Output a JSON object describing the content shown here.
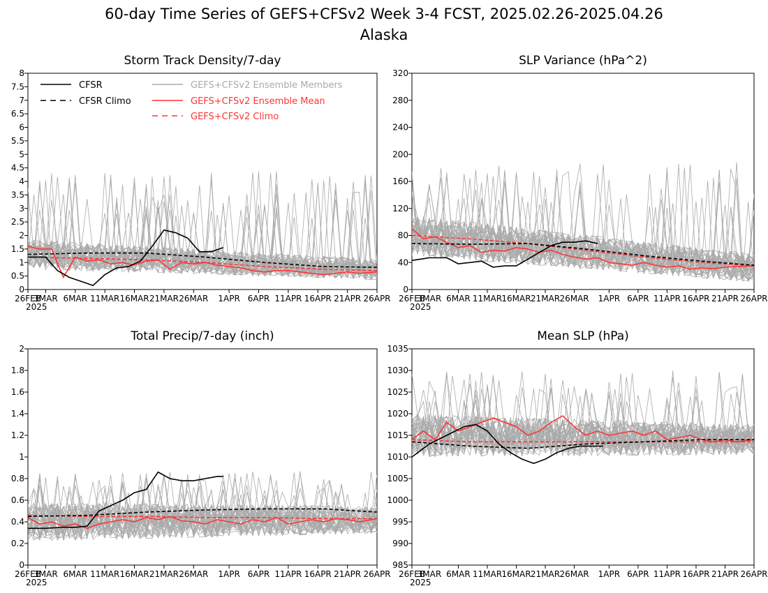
{
  "title": "60-day Time Series of GEFS+CFSv2 Week 3-4 FCST, 2025.02.26-2025.04.26",
  "subtitle": "Alaska",
  "colors": {
    "obs": "#000000",
    "members": "#aaaaaa",
    "ens_mean": "#ff3333",
    "ens_climo": "#ff3333"
  },
  "legend": [
    {
      "label": "CFSR",
      "style": "solid",
      "color": "#000000"
    },
    {
      "label": "CFSR Climo",
      "style": "dashed",
      "color": "#000000"
    },
    {
      "label": "GEFS+CFSv2 Ensemble Members",
      "style": "solid",
      "color": "#aaaaaa"
    },
    {
      "label": "GEFS+CFSv2 Ensemble Mean",
      "style": "solid",
      "color": "#ff3333"
    },
    {
      "label": "GEFS+CFSv2 Climo",
      "style": "dashed",
      "color": "#ff3333"
    }
  ],
  "chart_data": [
    {
      "type": "line",
      "title": "Storm Track Density/7-day",
      "x_ticks": [
        "26FEB",
        "3MAR",
        "6MAR",
        "11MAR",
        "16MAR",
        "21MAR",
        "26MAR",
        "1APR",
        "6APR",
        "11APR",
        "16APR",
        "21APR",
        "26APR"
      ],
      "x_year": "2025",
      "xlim": [
        0,
        59
      ],
      "ylim": [
        0,
        8
      ],
      "y_ticks": [
        "0",
        "0.5",
        "1",
        "1.5",
        "2",
        "2.5",
        "3",
        "3.5",
        "4",
        "4.5",
        "5",
        "5.5",
        "6",
        "6.5",
        "7",
        "7.5",
        "8"
      ],
      "members": {
        "count": 40,
        "center_start": 1.3,
        "center_end": 0.75,
        "spread": 0.55,
        "max_spike": 4.4
      },
      "series": [
        {
          "name": "CFSR",
          "role": "obs",
          "x": [
            0,
            3,
            5,
            7,
            9,
            11,
            13,
            15,
            17,
            19,
            21,
            23,
            25,
            27,
            29,
            31,
            33
          ],
          "values": [
            1.2,
            1.2,
            0.7,
            0.45,
            0.3,
            0.15,
            0.55,
            0.8,
            0.85,
            1.05,
            1.6,
            2.2,
            2.1,
            1.9,
            1.4,
            1.4,
            1.55
          ]
        },
        {
          "name": "CFSR Climo",
          "role": "obs_climo",
          "x": [
            0,
            10,
            20,
            30,
            40,
            50,
            59
          ],
          "values": [
            1.3,
            1.35,
            1.35,
            1.2,
            1.0,
            0.85,
            0.82
          ]
        },
        {
          "name": "GEFS+CFSv2 Ensemble Mean",
          "role": "ens_mean",
          "x": [
            0,
            2,
            4,
            6,
            8,
            10,
            12,
            14,
            16,
            18,
            20,
            22,
            24,
            26,
            28,
            30,
            32,
            34,
            36,
            38,
            40,
            42,
            44,
            46,
            48,
            50,
            52,
            54,
            56,
            59
          ],
          "values": [
            1.6,
            1.5,
            1.5,
            0.45,
            1.2,
            1.05,
            1.1,
            0.95,
            1.0,
            0.9,
            1.05,
            1.1,
            0.75,
            1.0,
            0.95,
            1.0,
            0.9,
            0.85,
            0.8,
            0.7,
            0.65,
            0.7,
            0.7,
            0.65,
            0.6,
            0.55,
            0.6,
            0.65,
            0.6,
            0.65
          ]
        },
        {
          "name": "GEFS+CFSv2 Climo",
          "role": "ens_climo",
          "x": [
            0,
            10,
            20,
            30,
            40,
            50,
            59
          ],
          "values": [
            1.2,
            1.15,
            1.1,
            1.0,
            0.85,
            0.75,
            0.7
          ]
        }
      ]
    },
    {
      "type": "line",
      "title": "SLP Variance (hPa^2)",
      "x_ticks": [
        "26FEB",
        "3MAR",
        "6MAR",
        "11MAR",
        "16MAR",
        "21MAR",
        "26MAR",
        "1APR",
        "6APR",
        "11APR",
        "16APR",
        "21APR",
        "26APR"
      ],
      "x_year": "2025",
      "xlim": [
        0,
        59
      ],
      "ylim": [
        0,
        320
      ],
      "y_ticks": [
        "0",
        "40",
        "80",
        "120",
        "160",
        "200",
        "240",
        "280",
        "320"
      ],
      "members": {
        "count": 40,
        "center_start": 80,
        "center_end": 32,
        "spread": 30,
        "max_spike": 190
      },
      "series": [
        {
          "name": "CFSR",
          "role": "obs",
          "x": [
            0,
            3,
            6,
            8,
            10,
            12,
            14,
            16,
            18,
            20,
            22,
            24,
            26,
            28,
            30,
            32
          ],
          "values": [
            43,
            47,
            47,
            38,
            40,
            42,
            33,
            35,
            35,
            45,
            55,
            65,
            70,
            70,
            72,
            68
          ]
        },
        {
          "name": "CFSR Climo",
          "role": "obs_climo",
          "x": [
            0,
            10,
            20,
            30,
            40,
            50,
            59
          ],
          "values": [
            68,
            67,
            68,
            60,
            50,
            42,
            36
          ]
        },
        {
          "name": "GEFS+CFSv2 Ensemble Mean",
          "role": "ens_mean",
          "x": [
            0,
            2,
            4,
            6,
            8,
            10,
            12,
            14,
            16,
            18,
            20,
            22,
            24,
            26,
            28,
            30,
            32,
            34,
            36,
            38,
            40,
            42,
            44,
            46,
            48,
            50,
            52,
            54,
            56,
            59
          ],
          "values": [
            90,
            75,
            78,
            70,
            62,
            65,
            55,
            58,
            57,
            62,
            60,
            55,
            58,
            52,
            48,
            45,
            47,
            40,
            38,
            36,
            40,
            36,
            33,
            35,
            30,
            32,
            31,
            33,
            34,
            35
          ]
        },
        {
          "name": "GEFS+CFSv2 Climo",
          "role": "ens_climo",
          "x": [
            0,
            10,
            20,
            30,
            40,
            50,
            59
          ],
          "values": [
            80,
            75,
            68,
            58,
            48,
            40,
            35
          ]
        }
      ]
    },
    {
      "type": "line",
      "title": "Total Precip/7-day (inch)",
      "x_ticks": [
        "26FEB",
        "3MAR",
        "6MAR",
        "11MAR",
        "16MAR",
        "21MAR",
        "26MAR",
        "1APR",
        "6APR",
        "11APR",
        "16APR",
        "21APR",
        "26APR"
      ],
      "x_year": "2025",
      "xlim": [
        0,
        59
      ],
      "ylim": [
        0,
        2
      ],
      "y_ticks": [
        "0",
        "0.2",
        "0.4",
        "0.6",
        "0.8",
        "1",
        "1.2",
        "1.4",
        "1.6",
        "1.8",
        "2"
      ],
      "members": {
        "count": 40,
        "center_start": 0.4,
        "center_end": 0.42,
        "spread": 0.18,
        "max_spike": 0.87
      },
      "series": [
        {
          "name": "CFSR",
          "role": "obs",
          "x": [
            0,
            3,
            6,
            8,
            10,
            12,
            14,
            16,
            18,
            20,
            22,
            24,
            26,
            28,
            30,
            32,
            33
          ],
          "values": [
            0.34,
            0.34,
            0.35,
            0.35,
            0.36,
            0.5,
            0.55,
            0.6,
            0.67,
            0.7,
            0.86,
            0.8,
            0.78,
            0.78,
            0.8,
            0.82,
            0.82
          ]
        },
        {
          "name": "CFSR Climo",
          "role": "obs_climo",
          "x": [
            0,
            10,
            20,
            30,
            40,
            50,
            59
          ],
          "values": [
            0.45,
            0.46,
            0.49,
            0.51,
            0.52,
            0.52,
            0.49
          ]
        },
        {
          "name": "GEFS+CFSv2 Ensemble Mean",
          "role": "ens_mean",
          "x": [
            0,
            2,
            4,
            6,
            8,
            10,
            12,
            14,
            16,
            18,
            20,
            22,
            24,
            26,
            28,
            30,
            32,
            34,
            36,
            38,
            40,
            42,
            44,
            46,
            48,
            50,
            52,
            54,
            56,
            59
          ],
          "values": [
            0.44,
            0.38,
            0.4,
            0.36,
            0.38,
            0.34,
            0.38,
            0.4,
            0.42,
            0.4,
            0.44,
            0.42,
            0.45,
            0.41,
            0.4,
            0.38,
            0.42,
            0.4,
            0.38,
            0.42,
            0.4,
            0.44,
            0.38,
            0.4,
            0.42,
            0.4,
            0.43,
            0.42,
            0.4,
            0.43
          ]
        },
        {
          "name": "GEFS+CFSv2 Climo",
          "role": "ens_climo",
          "x": [
            0,
            10,
            20,
            30,
            40,
            50,
            59
          ],
          "values": [
            0.46,
            0.45,
            0.45,
            0.44,
            0.44,
            0.43,
            0.43
          ]
        }
      ]
    },
    {
      "type": "line",
      "title": "Mean SLP (hPa)",
      "x_ticks": [
        "26FEB",
        "3MAR",
        "6MAR",
        "11MAR",
        "16MAR",
        "21MAR",
        "26MAR",
        "1APR",
        "6APR",
        "11APR",
        "16APR",
        "21APR",
        "26APR"
      ],
      "x_year": "2025",
      "xlim": [
        0,
        59
      ],
      "ylim": [
        985,
        1035
      ],
      "y_ticks": [
        "985",
        "990",
        "995",
        "1000",
        "1005",
        "1010",
        "1015",
        "1020",
        "1025",
        "1030",
        "1035"
      ],
      "members": {
        "count": 40,
        "center_start": 1015,
        "center_end": 1014,
        "spread": 5,
        "max_spike": 1030
      },
      "series": [
        {
          "name": "CFSR",
          "role": "obs",
          "x": [
            0,
            3,
            6,
            9,
            11,
            13,
            15,
            17,
            19,
            21,
            23,
            25,
            27,
            29,
            31,
            33
          ],
          "values": [
            1010,
            1013,
            1015,
            1017,
            1017.5,
            1016,
            1013,
            1011,
            1009.5,
            1008.5,
            1009.5,
            1011,
            1012,
            1012.5,
            1012.5,
            1012.5
          ]
        },
        {
          "name": "CFSR Climo",
          "role": "obs_climo",
          "x": [
            0,
            10,
            20,
            30,
            40,
            50,
            59
          ],
          "values": [
            1013.5,
            1012.5,
            1012,
            1013,
            1013.5,
            1014,
            1014
          ]
        },
        {
          "name": "GEFS+CFSv2 Ensemble Mean",
          "role": "ens_mean",
          "x": [
            0,
            2,
            4,
            6,
            8,
            10,
            12,
            14,
            16,
            18,
            20,
            22,
            24,
            26,
            28,
            30,
            32,
            34,
            36,
            38,
            40,
            42,
            44,
            46,
            48,
            50,
            52,
            54,
            56,
            59
          ],
          "values": [
            1014,
            1016,
            1014,
            1018,
            1016,
            1017,
            1018,
            1019,
            1018,
            1017,
            1015,
            1016,
            1018,
            1019.5,
            1017,
            1015,
            1016,
            1015,
            1015.5,
            1016,
            1015,
            1016,
            1014,
            1014.5,
            1015,
            1014,
            1013.5,
            1014,
            1013.5,
            1014
          ]
        },
        {
          "name": "GEFS+CFSv2 Climo",
          "role": "ens_climo",
          "x": [
            0,
            10,
            20,
            30,
            40,
            50,
            59
          ],
          "values": [
            1014,
            1013.5,
            1013.5,
            1013.5,
            1013.5,
            1013.5,
            1013.5
          ]
        }
      ]
    }
  ]
}
